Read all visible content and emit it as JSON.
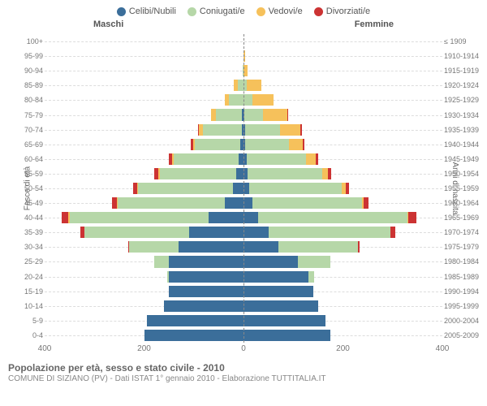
{
  "legend": [
    {
      "label": "Celibi/Nubili",
      "color": "#3b6e9a"
    },
    {
      "label": "Coniugati/e",
      "color": "#b6d7a8"
    },
    {
      "label": "Vedovi/e",
      "color": "#f6c15b"
    },
    {
      "label": "Divorziati/e",
      "color": "#cc3333"
    }
  ],
  "headers": {
    "male": "Maschi",
    "female": "Femmine"
  },
  "axis_labels": {
    "left": "Fasce di età",
    "right": "Anni di nascita"
  },
  "xaxis": {
    "max": 400,
    "ticks": [
      400,
      200,
      0,
      200,
      400
    ]
  },
  "footer": {
    "title": "Popolazione per età, sesso e stato civile - 2010",
    "subtitle": "COMUNE DI SIZIANO (PV) - Dati ISTAT 1° gennaio 2010 - Elaborazione TUTTITALIA.IT"
  },
  "colors": {
    "grid": "#dddddd",
    "center": "#888888",
    "text": "#666666"
  },
  "rows": [
    {
      "age": "100+",
      "birth": "≤ 1909",
      "m": {
        "c": 0,
        "co": 0,
        "v": 0,
        "d": 0
      },
      "f": {
        "c": 0,
        "co": 0,
        "v": 0,
        "d": 0
      }
    },
    {
      "age": "95-99",
      "birth": "1910-1914",
      "m": {
        "c": 0,
        "co": 0,
        "v": 0,
        "d": 0
      },
      "f": {
        "c": 0,
        "co": 0,
        "v": 4,
        "d": 0
      }
    },
    {
      "age": "90-94",
      "birth": "1915-1919",
      "m": {
        "c": 0,
        "co": 2,
        "v": 0,
        "d": 0
      },
      "f": {
        "c": 0,
        "co": 0,
        "v": 8,
        "d": 0
      }
    },
    {
      "age": "85-89",
      "birth": "1920-1924",
      "m": {
        "c": 0,
        "co": 12,
        "v": 8,
        "d": 0
      },
      "f": {
        "c": 0,
        "co": 6,
        "v": 30,
        "d": 0
      }
    },
    {
      "age": "80-84",
      "birth": "1925-1929",
      "m": {
        "c": 0,
        "co": 30,
        "v": 8,
        "d": 0
      },
      "f": {
        "c": 0,
        "co": 18,
        "v": 42,
        "d": 0
      }
    },
    {
      "age": "75-79",
      "birth": "1930-1934",
      "m": {
        "c": 4,
        "co": 52,
        "v": 10,
        "d": 0
      },
      "f": {
        "c": 2,
        "co": 38,
        "v": 48,
        "d": 2
      }
    },
    {
      "age": "70-74",
      "birth": "1935-1939",
      "m": {
        "c": 4,
        "co": 78,
        "v": 8,
        "d": 2
      },
      "f": {
        "c": 4,
        "co": 70,
        "v": 40,
        "d": 4
      }
    },
    {
      "age": "65-69",
      "birth": "1940-1944",
      "m": {
        "c": 6,
        "co": 92,
        "v": 4,
        "d": 4
      },
      "f": {
        "c": 4,
        "co": 88,
        "v": 28,
        "d": 2
      }
    },
    {
      "age": "60-64",
      "birth": "1945-1949",
      "m": {
        "c": 10,
        "co": 130,
        "v": 4,
        "d": 6
      },
      "f": {
        "c": 6,
        "co": 120,
        "v": 20,
        "d": 4
      }
    },
    {
      "age": "55-59",
      "birth": "1950-1954",
      "m": {
        "c": 14,
        "co": 155,
        "v": 2,
        "d": 8
      },
      "f": {
        "c": 8,
        "co": 150,
        "v": 12,
        "d": 6
      }
    },
    {
      "age": "50-54",
      "birth": "1955-1959",
      "m": {
        "c": 22,
        "co": 190,
        "v": 2,
        "d": 8
      },
      "f": {
        "c": 12,
        "co": 185,
        "v": 8,
        "d": 8
      }
    },
    {
      "age": "45-49",
      "birth": "1960-1964",
      "m": {
        "c": 38,
        "co": 215,
        "v": 2,
        "d": 10
      },
      "f": {
        "c": 18,
        "co": 220,
        "v": 4,
        "d": 10
      }
    },
    {
      "age": "40-44",
      "birth": "1965-1969",
      "m": {
        "c": 70,
        "co": 280,
        "v": 2,
        "d": 14
      },
      "f": {
        "c": 30,
        "co": 300,
        "v": 2,
        "d": 16
      }
    },
    {
      "age": "35-39",
      "birth": "1970-1974",
      "m": {
        "c": 110,
        "co": 210,
        "v": 0,
        "d": 8
      },
      "f": {
        "c": 50,
        "co": 245,
        "v": 0,
        "d": 10
      }
    },
    {
      "age": "30-34",
      "birth": "1975-1979",
      "m": {
        "c": 130,
        "co": 100,
        "v": 0,
        "d": 2
      },
      "f": {
        "c": 70,
        "co": 160,
        "v": 0,
        "d": 4
      }
    },
    {
      "age": "25-29",
      "birth": "1980-1984",
      "m": {
        "c": 150,
        "co": 30,
        "v": 0,
        "d": 0
      },
      "f": {
        "c": 110,
        "co": 65,
        "v": 0,
        "d": 0
      }
    },
    {
      "age": "20-24",
      "birth": "1985-1989",
      "m": {
        "c": 150,
        "co": 4,
        "v": 0,
        "d": 0
      },
      "f": {
        "c": 130,
        "co": 12,
        "v": 0,
        "d": 0
      }
    },
    {
      "age": "15-19",
      "birth": "1990-1994",
      "m": {
        "c": 150,
        "co": 0,
        "v": 0,
        "d": 0
      },
      "f": {
        "c": 140,
        "co": 0,
        "v": 0,
        "d": 0
      }
    },
    {
      "age": "10-14",
      "birth": "1995-1999",
      "m": {
        "c": 160,
        "co": 0,
        "v": 0,
        "d": 0
      },
      "f": {
        "c": 150,
        "co": 0,
        "v": 0,
        "d": 0
      }
    },
    {
      "age": "5-9",
      "birth": "2000-2004",
      "m": {
        "c": 195,
        "co": 0,
        "v": 0,
        "d": 0
      },
      "f": {
        "c": 165,
        "co": 0,
        "v": 0,
        "d": 0
      }
    },
    {
      "age": "0-4",
      "birth": "2005-2009",
      "m": {
        "c": 200,
        "co": 0,
        "v": 0,
        "d": 0
      },
      "f": {
        "c": 175,
        "co": 0,
        "v": 0,
        "d": 0
      }
    }
  ]
}
